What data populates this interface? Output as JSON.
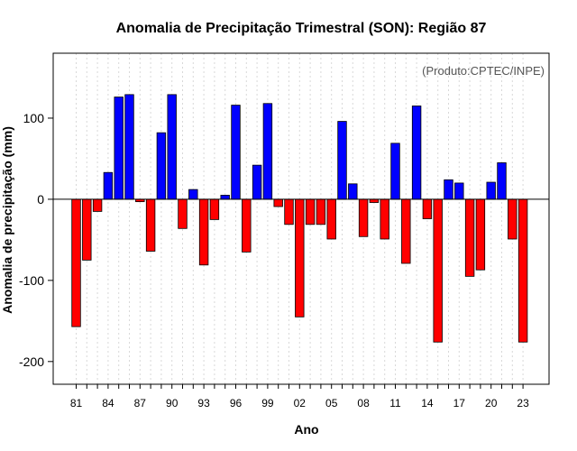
{
  "chart_data": {
    "type": "bar",
    "title": "Anomalia de Precipitação Trimestral (SON): Região 87",
    "xlabel": "Ano",
    "ylabel": "Anomalia de precipitação (mm)",
    "annotation": "(Produto:CPTEC/INPE)",
    "ylim": [
      -228,
      180
    ],
    "yticks": [
      100,
      0,
      -100,
      -200
    ],
    "grid": true,
    "positive_color": "#0000ff",
    "negative_color": "#ff0000",
    "xtick_labels": [
      "81",
      "84",
      "87",
      "90",
      "93",
      "96",
      "99",
      "02",
      "05",
      "08",
      "11",
      "14",
      "17",
      "20",
      "23"
    ],
    "categories": [
      "1981",
      "1982",
      "1983",
      "1984",
      "1985",
      "1986",
      "1987",
      "1988",
      "1989",
      "1990",
      "1991",
      "1992",
      "1993",
      "1994",
      "1995",
      "1996",
      "1997",
      "1998",
      "1999",
      "2000",
      "2001",
      "2002",
      "2003",
      "2004",
      "2005",
      "2006",
      "2007",
      "2008",
      "2009",
      "2010",
      "2011",
      "2012",
      "2013",
      "2014",
      "2015",
      "2016",
      "2017",
      "2018",
      "2019",
      "2020",
      "2021",
      "2022",
      "2023"
    ],
    "values": [
      -157,
      -75,
      -15,
      33,
      126,
      129,
      -3,
      -64,
      82,
      129,
      -36,
      12,
      -81,
      -25,
      5,
      116,
      -65,
      42,
      118,
      -9,
      -31,
      -145,
      -31,
      -31,
      -49,
      96,
      19,
      -46,
      -4,
      -49,
      69,
      -79,
      115,
      -24,
      -176,
      24,
      20,
      -95,
      -87,
      21,
      45,
      -49,
      -176
    ]
  }
}
